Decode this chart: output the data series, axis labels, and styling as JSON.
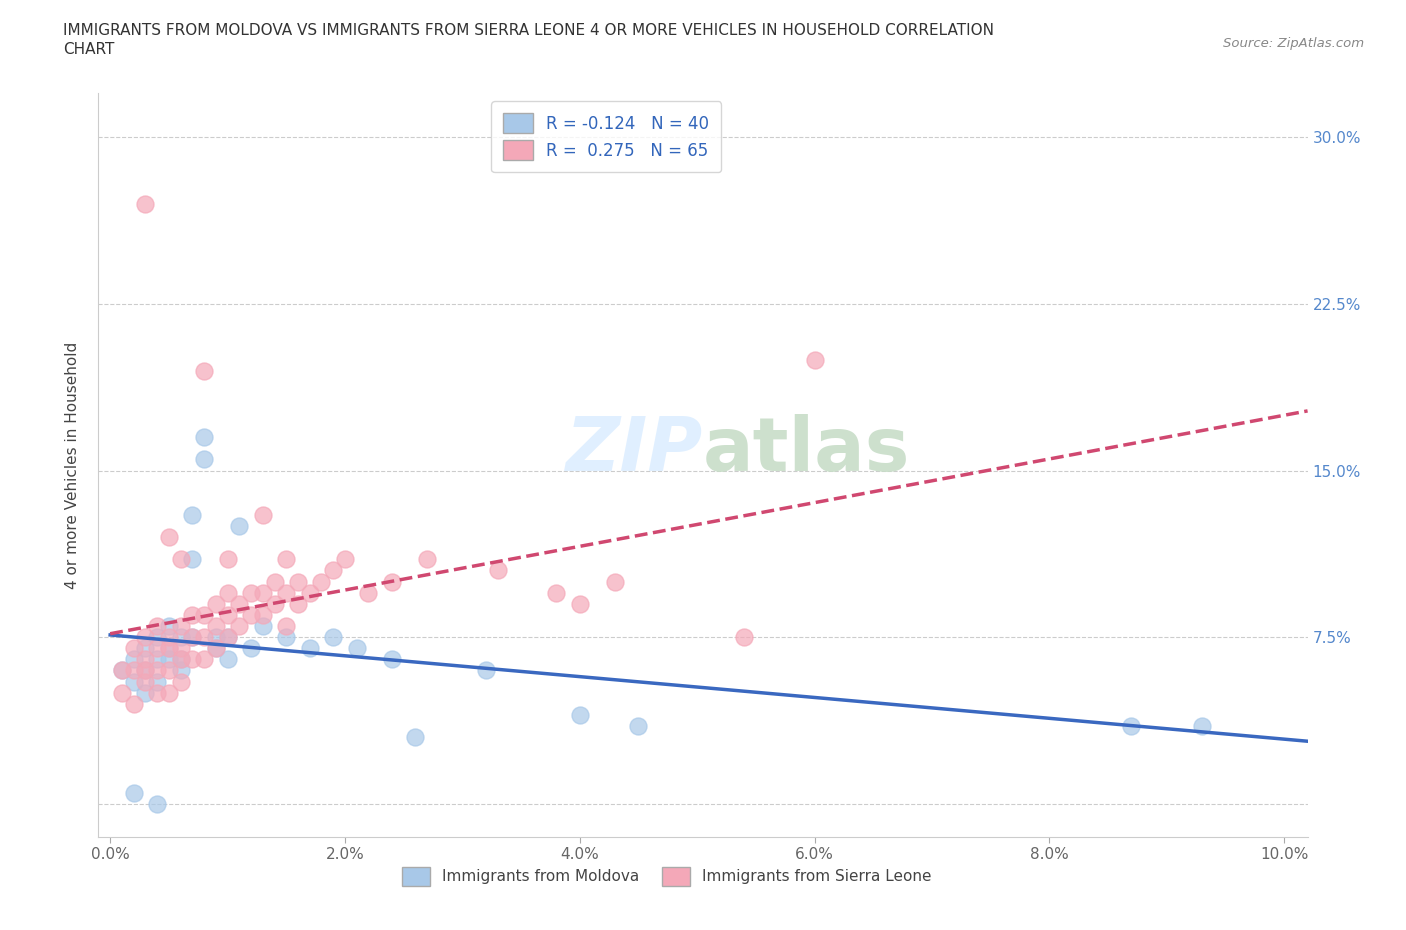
{
  "title_line1": "IMMIGRANTS FROM MOLDOVA VS IMMIGRANTS FROM SIERRA LEONE 4 OR MORE VEHICLES IN HOUSEHOLD CORRELATION",
  "title_line2": "CHART",
  "source": "Source: ZipAtlas.com",
  "ylabel": "4 or more Vehicles in Household",
  "legend_labels": [
    "Immigrants from Moldova",
    "Immigrants from Sierra Leone"
  ],
  "moldova_color": "#a8c8e8",
  "sierra_leone_color": "#f4a8b8",
  "moldova_line_color": "#3a68c0",
  "sierra_leone_line_color": "#d04870",
  "R_moldova": -0.124,
  "N_moldova": 40,
  "R_sierra_leone": 0.275,
  "N_sierra_leone": 65,
  "xlim": [
    -0.001,
    0.102
  ],
  "ylim": [
    -0.015,
    0.32
  ],
  "xticks": [
    0.0,
    0.02,
    0.04,
    0.06,
    0.08,
    0.1
  ],
  "yticks": [
    0.0,
    0.075,
    0.15,
    0.225,
    0.3
  ],
  "xticklabels": [
    "0.0%",
    "2.0%",
    "4.0%",
    "6.0%",
    "8.0%",
    "10.0%"
  ],
  "yticklabels_right": [
    "",
    "7.5%",
    "15.0%",
    "22.5%",
    "30.0%"
  ],
  "moldova_x": [
    0.001,
    0.002,
    0.002,
    0.003,
    0.003,
    0.003,
    0.004,
    0.004,
    0.004,
    0.005,
    0.005,
    0.005,
    0.006,
    0.006,
    0.006,
    0.007,
    0.007,
    0.007,
    0.008,
    0.008,
    0.009,
    0.009,
    0.01,
    0.01,
    0.011,
    0.012,
    0.013,
    0.015,
    0.017,
    0.019,
    0.021,
    0.024,
    0.026,
    0.032,
    0.04,
    0.045,
    0.087,
    0.093,
    0.002,
    0.004
  ],
  "moldova_y": [
    0.06,
    0.055,
    0.065,
    0.07,
    0.06,
    0.05,
    0.065,
    0.055,
    0.075,
    0.065,
    0.08,
    0.07,
    0.075,
    0.065,
    0.06,
    0.13,
    0.11,
    0.075,
    0.155,
    0.165,
    0.075,
    0.07,
    0.075,
    0.065,
    0.125,
    0.07,
    0.08,
    0.075,
    0.07,
    0.075,
    0.07,
    0.065,
    0.03,
    0.06,
    0.04,
    0.035,
    0.035,
    0.035,
    0.005,
    0.0
  ],
  "sierra_leone_x": [
    0.001,
    0.001,
    0.002,
    0.002,
    0.002,
    0.003,
    0.003,
    0.003,
    0.003,
    0.004,
    0.004,
    0.004,
    0.004,
    0.005,
    0.005,
    0.005,
    0.005,
    0.006,
    0.006,
    0.006,
    0.006,
    0.007,
    0.007,
    0.007,
    0.008,
    0.008,
    0.008,
    0.009,
    0.009,
    0.009,
    0.01,
    0.01,
    0.01,
    0.011,
    0.011,
    0.012,
    0.012,
    0.013,
    0.013,
    0.014,
    0.014,
    0.015,
    0.015,
    0.016,
    0.016,
    0.017,
    0.018,
    0.019,
    0.02,
    0.022,
    0.024,
    0.027,
    0.033,
    0.038,
    0.04,
    0.043,
    0.054,
    0.003,
    0.005,
    0.006,
    0.008,
    0.01,
    0.013,
    0.015,
    0.06
  ],
  "sierra_leone_y": [
    0.06,
    0.05,
    0.07,
    0.06,
    0.045,
    0.075,
    0.065,
    0.06,
    0.055,
    0.07,
    0.06,
    0.05,
    0.08,
    0.07,
    0.06,
    0.075,
    0.05,
    0.08,
    0.07,
    0.065,
    0.055,
    0.075,
    0.085,
    0.065,
    0.085,
    0.075,
    0.065,
    0.08,
    0.09,
    0.07,
    0.085,
    0.095,
    0.075,
    0.09,
    0.08,
    0.095,
    0.085,
    0.095,
    0.085,
    0.1,
    0.09,
    0.095,
    0.08,
    0.1,
    0.09,
    0.095,
    0.1,
    0.105,
    0.11,
    0.095,
    0.1,
    0.11,
    0.105,
    0.095,
    0.09,
    0.1,
    0.075,
    0.27,
    0.12,
    0.11,
    0.195,
    0.11,
    0.13,
    0.11,
    0.2
  ]
}
